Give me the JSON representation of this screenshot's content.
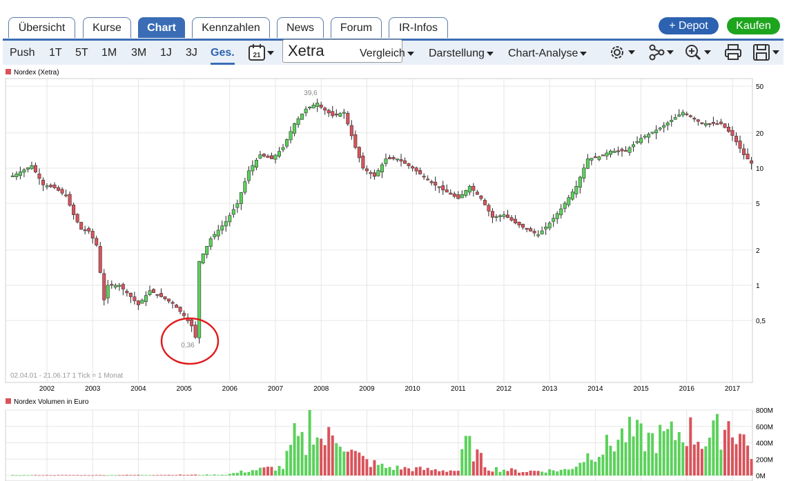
{
  "tabs": [
    {
      "label": "Übersicht",
      "active": false
    },
    {
      "label": "Kurse",
      "active": false
    },
    {
      "label": "Chart",
      "active": true
    },
    {
      "label": "Kennzahlen",
      "active": false
    },
    {
      "label": "News",
      "active": false
    },
    {
      "label": "Forum",
      "active": false
    },
    {
      "label": "IR-Infos",
      "active": false
    }
  ],
  "actions": {
    "depot": "+ Depot",
    "kaufen": "Kaufen"
  },
  "periods": [
    "Push",
    "1T",
    "5T",
    "1M",
    "3M",
    "1J",
    "3J",
    "Ges."
  ],
  "active_period": "Ges.",
  "calendar_day": "21",
  "exchange": "Xetra",
  "menus": {
    "vergleich": "Vergleich",
    "darstellung": "Darstellung",
    "analyse": "Chart-Analyse"
  },
  "colors": {
    "up": "#5bd15b",
    "down": "#d9535b",
    "accent": "#3a6db5",
    "highlight": "#e01b1b"
  },
  "icons": [
    "calendar-icon",
    "settings-gear-icon",
    "share-network-icon",
    "zoom-in-icon",
    "print-icon",
    "save-icon"
  ],
  "chart_data": [
    {
      "type": "candlestick",
      "legend": "Nordex (Xetra)",
      "scale": "log",
      "y_ticks": [
        0.5,
        1,
        2,
        5,
        10,
        20,
        50
      ],
      "y_tick_labels": [
        "0,5",
        "1",
        "2",
        "5",
        "10",
        "20",
        "50"
      ],
      "x_ticks": [
        "2002",
        "2003",
        "2004",
        "2005",
        "2006",
        "2007",
        "2008",
        "2009",
        "2010",
        "2011",
        "2012",
        "2013",
        "2014",
        "2015",
        "2016",
        "2017"
      ],
      "range_note": "02.04.01 - 21.06.17   1 Tick = 1 Monat",
      "max_label": "39,6",
      "min_label": "0,36",
      "series_close": [
        {
          "t": "2001-04",
          "v": 8.6
        },
        {
          "t": "2001-06",
          "v": 9.3
        },
        {
          "t": "2001-09",
          "v": 10.5
        },
        {
          "t": "2001-12",
          "v": 7.2
        },
        {
          "t": "2002-03",
          "v": 6.8
        },
        {
          "t": "2002-06",
          "v": 5.8
        },
        {
          "t": "2002-08",
          "v": 4.0
        },
        {
          "t": "2002-10",
          "v": 3.0
        },
        {
          "t": "2002-12",
          "v": 2.9
        },
        {
          "t": "2003-02",
          "v": 2.2
        },
        {
          "t": "2003-04",
          "v": 0.75
        },
        {
          "t": "2003-05",
          "v": 1.0
        },
        {
          "t": "2003-08",
          "v": 1.0
        },
        {
          "t": "2003-11",
          "v": 0.8
        },
        {
          "t": "2004-01",
          "v": 0.68
        },
        {
          "t": "2004-04",
          "v": 0.9
        },
        {
          "t": "2004-07",
          "v": 0.8
        },
        {
          "t": "2004-10",
          "v": 0.7
        },
        {
          "t": "2005-01",
          "v": 0.55
        },
        {
          "t": "2005-03",
          "v": 0.45
        },
        {
          "t": "2005-04",
          "v": 0.36
        },
        {
          "t": "2005-05",
          "v": 1.6
        },
        {
          "t": "2005-08",
          "v": 2.5
        },
        {
          "t": "2005-12",
          "v": 3.5
        },
        {
          "t": "2006-03",
          "v": 5.0
        },
        {
          "t": "2006-06",
          "v": 9.5
        },
        {
          "t": "2006-09",
          "v": 13.0
        },
        {
          "t": "2006-12",
          "v": 12.0
        },
        {
          "t": "2007-03",
          "v": 15.0
        },
        {
          "t": "2007-06",
          "v": 24.0
        },
        {
          "t": "2007-09",
          "v": 32.0
        },
        {
          "t": "2007-12",
          "v": 36.0
        },
        {
          "t": "2008-01",
          "v": 33.0
        },
        {
          "t": "2008-04",
          "v": 28.0
        },
        {
          "t": "2008-07",
          "v": 30.0
        },
        {
          "t": "2008-10",
          "v": 15.0
        },
        {
          "t": "2008-12",
          "v": 10.0
        },
        {
          "t": "2009-03",
          "v": 8.5
        },
        {
          "t": "2009-06",
          "v": 12.0
        },
        {
          "t": "2009-09",
          "v": 12.0
        },
        {
          "t": "2010-01",
          "v": 10.0
        },
        {
          "t": "2010-06",
          "v": 7.5
        },
        {
          "t": "2010-09",
          "v": 6.5
        },
        {
          "t": "2011-01",
          "v": 5.5
        },
        {
          "t": "2011-04",
          "v": 7.0
        },
        {
          "t": "2011-07",
          "v": 5.5
        },
        {
          "t": "2011-10",
          "v": 3.8
        },
        {
          "t": "2012-01",
          "v": 4.0
        },
        {
          "t": "2012-04",
          "v": 3.4
        },
        {
          "t": "2012-07",
          "v": 3.0
        },
        {
          "t": "2012-10",
          "v": 2.7
        },
        {
          "t": "2013-01",
          "v": 3.4
        },
        {
          "t": "2013-04",
          "v": 4.5
        },
        {
          "t": "2013-08",
          "v": 7.0
        },
        {
          "t": "2013-11",
          "v": 12.0
        },
        {
          "t": "2014-02",
          "v": 12.5
        },
        {
          "t": "2014-05",
          "v": 14.0
        },
        {
          "t": "2014-09",
          "v": 14.0
        },
        {
          "t": "2015-01",
          "v": 18.0
        },
        {
          "t": "2015-06",
          "v": 22.0
        },
        {
          "t": "2015-12",
          "v": 30.0
        },
        {
          "t": "2016-05",
          "v": 24.0
        },
        {
          "t": "2016-10",
          "v": 24.0
        },
        {
          "t": "2017-01",
          "v": 19.0
        },
        {
          "t": "2017-04",
          "v": 13.0
        },
        {
          "t": "2017-06",
          "v": 11.0
        }
      ]
    },
    {
      "type": "bar",
      "legend": "Nordex Volumen in Euro",
      "y_tick_labels": [
        "800M",
        "600M",
        "400M",
        "200M",
        "0M"
      ],
      "y_ticks": [
        800,
        600,
        400,
        200,
        0
      ],
      "ylim": [
        0,
        800
      ],
      "unit": "M EUR",
      "values_by_period": [
        {
          "t": "2001-2005",
          "v": 5
        },
        {
          "t": "2005-12",
          "v": 10
        },
        {
          "t": "2006-06",
          "v": 60
        },
        {
          "t": "2006-12",
          "v": 90
        },
        {
          "t": "2007-03",
          "v": 100
        },
        {
          "t": "2007-06",
          "v": 450
        },
        {
          "t": "2007-09",
          "v": 350
        },
        {
          "t": "2007-10",
          "v": 780
        },
        {
          "t": "2008-01",
          "v": 420
        },
        {
          "t": "2008-04",
          "v": 460
        },
        {
          "t": "2008-06",
          "v": 510
        },
        {
          "t": "2008-09",
          "v": 280
        },
        {
          "t": "2009-01",
          "v": 170
        },
        {
          "t": "2009-06",
          "v": 100
        },
        {
          "t": "2010-06",
          "v": 70
        },
        {
          "t": "2011-01",
          "v": 60
        },
        {
          "t": "2011-03",
          "v": 400
        },
        {
          "t": "2011-09",
          "v": 90
        },
        {
          "t": "2012-06",
          "v": 50
        },
        {
          "t": "2013-06",
          "v": 70
        },
        {
          "t": "2013-12",
          "v": 280
        },
        {
          "t": "2014-03",
          "v": 320
        },
        {
          "t": "2014-09",
          "v": 510
        },
        {
          "t": "2015-03",
          "v": 440
        },
        {
          "t": "2015-09",
          "v": 480
        },
        {
          "t": "2016-01",
          "v": 560
        },
        {
          "t": "2016-06",
          "v": 420
        },
        {
          "t": "2016-12",
          "v": 640
        },
        {
          "t": "2017-03",
          "v": 520
        },
        {
          "t": "2017-06",
          "v": 280
        }
      ]
    }
  ]
}
